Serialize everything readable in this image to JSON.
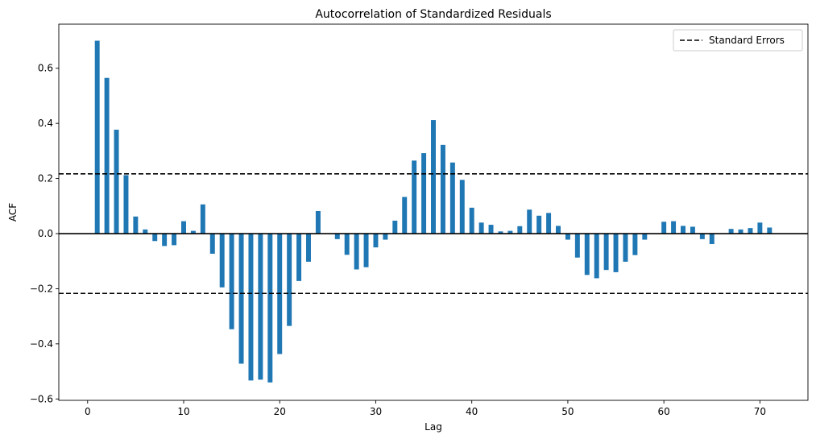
{
  "chart_data": {
    "type": "bar",
    "title": "Autocorrelation of Standardized Residuals",
    "xlabel": "Lag",
    "ylabel": "ACF",
    "xlim": [
      -3,
      75
    ],
    "ylim": [
      -0.605,
      0.76
    ],
    "xticks": [
      0,
      10,
      20,
      30,
      40,
      50,
      60,
      70
    ],
    "yticks": [
      -0.6,
      -0.4,
      -0.2,
      0.0,
      0.2,
      0.4,
      0.6
    ],
    "ytick_labels": [
      "−0.6",
      "−0.4",
      "−0.2",
      "0.0",
      "0.2",
      "0.4",
      "0.6"
    ],
    "grid": false,
    "legend_position": "top-right",
    "series": [
      {
        "lags": [
          1,
          2,
          3,
          4,
          5,
          6,
          7,
          8,
          9,
          10,
          11,
          12,
          13,
          14,
          15,
          16,
          17,
          18,
          19,
          20,
          21,
          22,
          23,
          24,
          25,
          26,
          27,
          28,
          29,
          30,
          31,
          32,
          33,
          34,
          35,
          36,
          37,
          38,
          39,
          40,
          41,
          42,
          43,
          44,
          45,
          46,
          47,
          48,
          49,
          50,
          51,
          52,
          53,
          54,
          55,
          56,
          57,
          58,
          59,
          60,
          61,
          62,
          63,
          64,
          65,
          66,
          67,
          68,
          69,
          70,
          71
        ],
        "values": [
          0.7,
          0.565,
          0.377,
          0.212,
          0.062,
          0.015,
          -0.027,
          -0.045,
          -0.042,
          0.045,
          0.01,
          0.106,
          -0.073,
          -0.195,
          -0.347,
          -0.472,
          -0.533,
          -0.53,
          -0.54,
          -0.437,
          -0.335,
          -0.172,
          -0.102,
          0.082,
          0.0,
          -0.02,
          -0.077,
          -0.13,
          -0.122,
          -0.05,
          -0.022,
          0.047,
          0.133,
          0.265,
          0.292,
          0.412,
          0.322,
          0.258,
          0.195,
          0.094,
          0.04,
          0.032,
          0.008,
          0.01,
          0.027,
          0.087,
          0.065,
          0.075,
          0.028,
          -0.022,
          -0.087,
          -0.15,
          -0.162,
          -0.132,
          -0.14,
          -0.102,
          -0.078,
          -0.022,
          0.0,
          0.043,
          0.045,
          0.028,
          0.025,
          -0.02,
          -0.038,
          0.0,
          0.017,
          0.015,
          0.02,
          0.04,
          0.022
        ],
        "color": "#1f77b4"
      }
    ],
    "zero_line": {
      "value": 0.0,
      "color": "#000000"
    },
    "standard_errors": {
      "name": "Standard Errors",
      "value": 0.217,
      "color": "#000000",
      "style": "dashed"
    }
  }
}
